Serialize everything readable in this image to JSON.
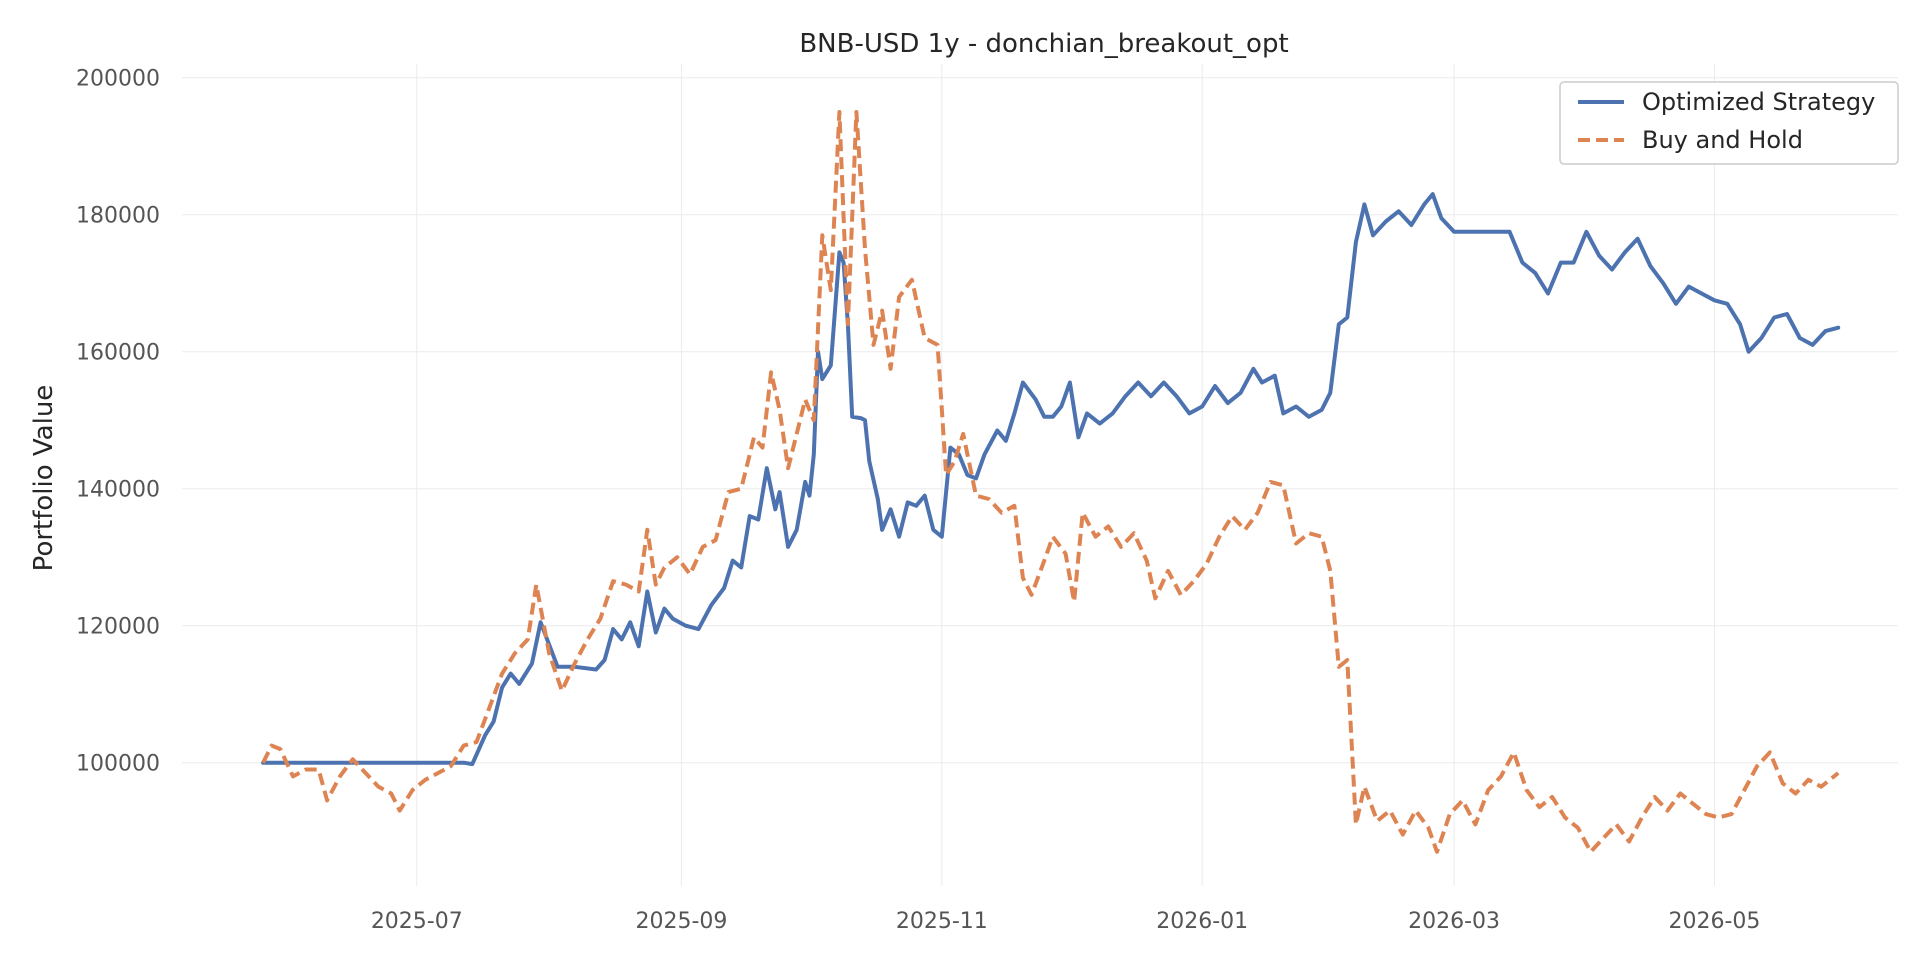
{
  "chart_data": {
    "type": "line",
    "title": "BNB-USD 1y - donchian_breakout_opt",
    "xlabel": "",
    "ylabel": "Portfolio Value",
    "xlim": [
      "2025-05-07",
      "2026-06-13"
    ],
    "ylim": [
      82000,
      202000
    ],
    "x_ticks": [
      "2025-07",
      "2025-09",
      "2025-11",
      "2026-01",
      "2026-03",
      "2026-05"
    ],
    "y_ticks": [
      100000,
      120000,
      140000,
      160000,
      180000,
      200000
    ],
    "grid": true,
    "legend_position": "top-right",
    "series": [
      {
        "name": "Optimized Strategy",
        "color": "#4c72b0",
        "style": "solid",
        "points": [
          [
            "2025-05-26",
            100000
          ],
          [
            "2025-06-15",
            100000
          ],
          [
            "2025-07-01",
            100000
          ],
          [
            "2025-07-12",
            100000
          ],
          [
            "2025-07-14",
            99800
          ],
          [
            "2025-07-17",
            104000
          ],
          [
            "2025-07-19",
            106000
          ],
          [
            "2025-07-21",
            111000
          ],
          [
            "2025-07-23",
            113000
          ],
          [
            "2025-07-25",
            111500
          ],
          [
            "2025-07-28",
            114500
          ],
          [
            "2025-07-30",
            120500
          ],
          [
            "2025-08-03",
            114000
          ],
          [
            "2025-08-07",
            114000
          ],
          [
            "2025-08-12",
            113600
          ],
          [
            "2025-08-14",
            115000
          ],
          [
            "2025-08-16",
            119500
          ],
          [
            "2025-08-18",
            118000
          ],
          [
            "2025-08-20",
            120500
          ],
          [
            "2025-08-22",
            117000
          ],
          [
            "2025-08-24",
            125000
          ],
          [
            "2025-08-26",
            119000
          ],
          [
            "2025-08-28",
            122500
          ],
          [
            "2025-08-30",
            121000
          ],
          [
            "2025-09-02",
            120000
          ],
          [
            "2025-09-05",
            119500
          ],
          [
            "2025-09-08",
            123000
          ],
          [
            "2025-09-11",
            125500
          ],
          [
            "2025-09-13",
            129500
          ],
          [
            "2025-09-15",
            128500
          ],
          [
            "2025-09-17",
            136000
          ],
          [
            "2025-09-19",
            135500
          ],
          [
            "2025-09-21",
            143000
          ],
          [
            "2025-09-23",
            137000
          ],
          [
            "2025-09-24",
            139500
          ],
          [
            "2025-09-26",
            131500
          ],
          [
            "2025-09-28",
            134000
          ],
          [
            "2025-09-30",
            141000
          ],
          [
            "2025-10-01",
            139000
          ],
          [
            "2025-10-02",
            145000
          ],
          [
            "2025-10-03",
            160000
          ],
          [
            "2025-10-04",
            156000
          ],
          [
            "2025-10-06",
            158000
          ],
          [
            "2025-10-08",
            174500
          ],
          [
            "2025-10-09",
            173000
          ],
          [
            "2025-10-10",
            164000
          ],
          [
            "2025-10-11",
            150500
          ],
          [
            "2025-10-13",
            150300
          ],
          [
            "2025-10-14",
            150000
          ],
          [
            "2025-10-15",
            144000
          ],
          [
            "2025-10-17",
            138500
          ],
          [
            "2025-10-18",
            134000
          ],
          [
            "2025-10-20",
            137000
          ],
          [
            "2025-10-22",
            133000
          ],
          [
            "2025-10-24",
            138000
          ],
          [
            "2025-10-26",
            137500
          ],
          [
            "2025-10-28",
            139000
          ],
          [
            "2025-10-30",
            134000
          ],
          [
            "2025-11-01",
            133000
          ],
          [
            "2025-11-03",
            146000
          ],
          [
            "2025-11-05",
            145000
          ],
          [
            "2025-11-07",
            142000
          ],
          [
            "2025-11-09",
            141500
          ],
          [
            "2025-11-11",
            145000
          ],
          [
            "2025-11-14",
            148500
          ],
          [
            "2025-11-16",
            147000
          ],
          [
            "2025-11-18",
            151000
          ],
          [
            "2025-11-20",
            155500
          ],
          [
            "2025-11-23",
            153000
          ],
          [
            "2025-11-25",
            150500
          ],
          [
            "2025-11-27",
            150500
          ],
          [
            "2025-11-29",
            152000
          ],
          [
            "2025-12-01",
            155500
          ],
          [
            "2025-12-03",
            147500
          ],
          [
            "2025-12-05",
            151000
          ],
          [
            "2025-12-08",
            149500
          ],
          [
            "2025-12-11",
            151000
          ],
          [
            "2025-12-14",
            153500
          ],
          [
            "2025-12-17",
            155500
          ],
          [
            "2025-12-20",
            153500
          ],
          [
            "2025-12-23",
            155500
          ],
          [
            "2025-12-26",
            153500
          ],
          [
            "2025-12-29",
            151000
          ],
          [
            "2026-01-01",
            152000
          ],
          [
            "2026-01-04",
            155000
          ],
          [
            "2026-01-07",
            152500
          ],
          [
            "2026-01-10",
            154000
          ],
          [
            "2026-01-13",
            157500
          ],
          [
            "2026-01-15",
            155500
          ],
          [
            "2026-01-18",
            156500
          ],
          [
            "2026-01-20",
            151000
          ],
          [
            "2026-01-23",
            152000
          ],
          [
            "2026-01-26",
            150500
          ],
          [
            "2026-01-29",
            151500
          ],
          [
            "2026-01-31",
            154000
          ],
          [
            "2026-02-02",
            164000
          ],
          [
            "2026-02-04",
            165000
          ],
          [
            "2026-02-06",
            176000
          ],
          [
            "2026-02-08",
            181500
          ],
          [
            "2026-02-10",
            177000
          ],
          [
            "2026-02-13",
            179000
          ],
          [
            "2026-02-16",
            180500
          ],
          [
            "2026-02-19",
            178500
          ],
          [
            "2026-02-22",
            181500
          ],
          [
            "2026-02-24",
            183000
          ],
          [
            "2026-02-26",
            179500
          ],
          [
            "2026-03-01",
            177500
          ],
          [
            "2026-03-05",
            177500
          ],
          [
            "2026-03-10",
            177500
          ],
          [
            "2026-03-14",
            177500
          ],
          [
            "2026-03-17",
            173000
          ],
          [
            "2026-03-20",
            171500
          ],
          [
            "2026-03-23",
            168500
          ],
          [
            "2026-03-26",
            173000
          ],
          [
            "2026-03-29",
            173000
          ],
          [
            "2026-04-01",
            177500
          ],
          [
            "2026-04-04",
            174000
          ],
          [
            "2026-04-07",
            172000
          ],
          [
            "2026-04-10",
            174500
          ],
          [
            "2026-04-13",
            176500
          ],
          [
            "2026-04-16",
            172500
          ],
          [
            "2026-04-19",
            170000
          ],
          [
            "2026-04-22",
            167000
          ],
          [
            "2026-04-25",
            169500
          ],
          [
            "2026-04-28",
            168500
          ],
          [
            "2026-05-01",
            167500
          ],
          [
            "2026-05-04",
            167000
          ],
          [
            "2026-05-07",
            164000
          ],
          [
            "2026-05-09",
            160000
          ],
          [
            "2026-05-12",
            162000
          ],
          [
            "2026-05-15",
            165000
          ],
          [
            "2026-05-18",
            165500
          ],
          [
            "2026-05-21",
            162000
          ],
          [
            "2026-05-24",
            161000
          ],
          [
            "2026-05-27",
            163000
          ],
          [
            "2026-05-30",
            163500
          ]
        ]
      },
      {
        "name": "Buy and Hold",
        "color": "#dd8452",
        "style": "dashed",
        "points": [
          [
            "2025-05-26",
            100000
          ],
          [
            "2025-05-28",
            102500
          ],
          [
            "2025-05-30",
            102000
          ],
          [
            "2025-06-02",
            98000
          ],
          [
            "2025-06-05",
            99000
          ],
          [
            "2025-06-08",
            99000
          ],
          [
            "2025-06-10",
            94500
          ],
          [
            "2025-06-13",
            98000
          ],
          [
            "2025-06-16",
            100500
          ],
          [
            "2025-06-19",
            98500
          ],
          [
            "2025-06-22",
            96500
          ],
          [
            "2025-06-25",
            95500
          ],
          [
            "2025-06-27",
            93000
          ],
          [
            "2025-06-30",
            96000
          ],
          [
            "2025-07-03",
            97500
          ],
          [
            "2025-07-06",
            98500
          ],
          [
            "2025-07-09",
            99500
          ],
          [
            "2025-07-12",
            102500
          ],
          [
            "2025-07-15",
            103000
          ],
          [
            "2025-07-18",
            108000
          ],
          [
            "2025-07-21",
            113000
          ],
          [
            "2025-07-24",
            116000
          ],
          [
            "2025-07-27",
            118000
          ],
          [
            "2025-07-29",
            126000
          ],
          [
            "2025-08-01",
            116000
          ],
          [
            "2025-08-04",
            110500
          ],
          [
            "2025-08-07",
            114500
          ],
          [
            "2025-08-10",
            118000
          ],
          [
            "2025-08-13",
            121000
          ],
          [
            "2025-08-16",
            126500
          ],
          [
            "2025-08-19",
            126000
          ],
          [
            "2025-08-22",
            125000
          ],
          [
            "2025-08-24",
            134000
          ],
          [
            "2025-08-26",
            126000
          ],
          [
            "2025-08-28",
            128500
          ],
          [
            "2025-08-31",
            130000
          ],
          [
            "2025-09-03",
            127500
          ],
          [
            "2025-09-06",
            131500
          ],
          [
            "2025-09-09",
            132500
          ],
          [
            "2025-09-12",
            139500
          ],
          [
            "2025-09-15",
            140000
          ],
          [
            "2025-09-18",
            147500
          ],
          [
            "2025-09-20",
            146000
          ],
          [
            "2025-09-22",
            157000
          ],
          [
            "2025-09-24",
            151500
          ],
          [
            "2025-09-26",
            143000
          ],
          [
            "2025-09-28",
            148000
          ],
          [
            "2025-09-30",
            153000
          ],
          [
            "2025-10-02",
            150000
          ],
          [
            "2025-10-04",
            177000
          ],
          [
            "2025-10-06",
            169000
          ],
          [
            "2025-10-08",
            195000
          ],
          [
            "2025-10-10",
            164000
          ],
          [
            "2025-10-12",
            195000
          ],
          [
            "2025-10-14",
            175000
          ],
          [
            "2025-10-16",
            161000
          ],
          [
            "2025-10-18",
            166000
          ],
          [
            "2025-10-20",
            157500
          ],
          [
            "2025-10-22",
            168000
          ],
          [
            "2025-10-25",
            170500
          ],
          [
            "2025-10-28",
            162000
          ],
          [
            "2025-10-31",
            161000
          ],
          [
            "2025-11-02",
            142000
          ],
          [
            "2025-11-04",
            144000
          ],
          [
            "2025-11-06",
            148000
          ],
          [
            "2025-11-09",
            139000
          ],
          [
            "2025-11-12",
            138500
          ],
          [
            "2025-11-15",
            136500
          ],
          [
            "2025-11-18",
            137500
          ],
          [
            "2025-11-20",
            127000
          ],
          [
            "2025-11-22",
            124500
          ],
          [
            "2025-11-25",
            129500
          ],
          [
            "2025-11-27",
            133000
          ],
          [
            "2025-11-30",
            130500
          ],
          [
            "2025-12-02",
            123500
          ],
          [
            "2025-12-04",
            136500
          ],
          [
            "2025-12-07",
            133000
          ],
          [
            "2025-12-10",
            134500
          ],
          [
            "2025-12-13",
            131500
          ],
          [
            "2025-12-16",
            133500
          ],
          [
            "2025-12-19",
            129500
          ],
          [
            "2025-12-21",
            124000
          ],
          [
            "2025-12-24",
            128000
          ],
          [
            "2025-12-27",
            124500
          ],
          [
            "2025-12-30",
            126500
          ],
          [
            "2026-01-02",
            129000
          ],
          [
            "2026-01-05",
            133000
          ],
          [
            "2026-01-08",
            136000
          ],
          [
            "2026-01-11",
            134000
          ],
          [
            "2026-01-14",
            136500
          ],
          [
            "2026-01-17",
            141000
          ],
          [
            "2026-01-20",
            140500
          ],
          [
            "2026-01-23",
            132000
          ],
          [
            "2026-01-26",
            133500
          ],
          [
            "2026-01-29",
            133000
          ],
          [
            "2026-01-31",
            128000
          ],
          [
            "2026-02-02",
            114000
          ],
          [
            "2026-02-04",
            115000
          ],
          [
            "2026-02-06",
            91000
          ],
          [
            "2026-02-08",
            96500
          ],
          [
            "2026-02-11",
            91500
          ],
          [
            "2026-02-14",
            93000
          ],
          [
            "2026-02-17",
            89500
          ],
          [
            "2026-02-20",
            93000
          ],
          [
            "2026-02-23",
            90500
          ],
          [
            "2026-02-25",
            87000
          ],
          [
            "2026-02-28",
            92500
          ],
          [
            "2026-03-03",
            94500
          ],
          [
            "2026-03-06",
            91000
          ],
          [
            "2026-03-09",
            96000
          ],
          [
            "2026-03-12",
            98000
          ],
          [
            "2026-03-15",
            101500
          ],
          [
            "2026-03-18",
            96000
          ],
          [
            "2026-03-21",
            93500
          ],
          [
            "2026-03-24",
            95000
          ],
          [
            "2026-03-27",
            92000
          ],
          [
            "2026-03-30",
            90500
          ],
          [
            "2026-04-02",
            87000
          ],
          [
            "2026-04-05",
            89000
          ],
          [
            "2026-04-08",
            91000
          ],
          [
            "2026-04-11",
            88500
          ],
          [
            "2026-04-14",
            92000
          ],
          [
            "2026-04-17",
            95000
          ],
          [
            "2026-04-20",
            93000
          ],
          [
            "2026-04-23",
            95500
          ],
          [
            "2026-04-26",
            94000
          ],
          [
            "2026-04-29",
            92500
          ],
          [
            "2026-05-02",
            92000
          ],
          [
            "2026-05-05",
            92500
          ],
          [
            "2026-05-08",
            96000
          ],
          [
            "2026-05-11",
            99500
          ],
          [
            "2026-05-14",
            101500
          ],
          [
            "2026-05-17",
            97000
          ],
          [
            "2026-05-20",
            95500
          ],
          [
            "2026-05-23",
            97500
          ],
          [
            "2026-05-26",
            96500
          ],
          [
            "2026-05-30",
            98500
          ]
        ]
      }
    ]
  }
}
